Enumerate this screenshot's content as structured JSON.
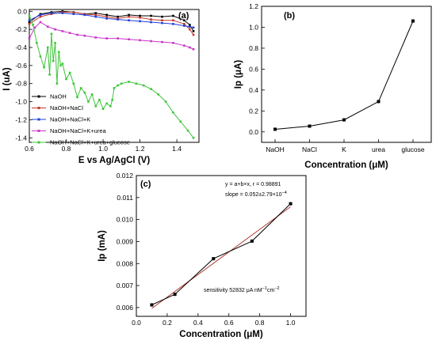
{
  "chart_data": [
    {
      "id": "a",
      "panel_label": "(a)",
      "type": "line",
      "xlabel": "E vs Ag/AgCl (V)",
      "ylabel": "I (uA)",
      "xlim": [
        0.6,
        1.52
      ],
      "ylim": [
        -1.45,
        0.02
      ],
      "xticks": [
        0.6,
        0.8,
        1.0,
        1.2,
        1.4
      ],
      "xtick_labels": [
        "0.6",
        "0.8",
        "1.0",
        "1.2",
        "1.4"
      ],
      "yticks": [
        0.0,
        -0.2,
        -0.4,
        -0.6,
        -0.8,
        -1.0,
        -1.2,
        -1.4
      ],
      "ytick_labels": [
        "0.0",
        "-0.2",
        "-0.4",
        "-0.6",
        "-0.8",
        "-1.0",
        "-1.2",
        "-1.4"
      ],
      "legend_position": "lower-left",
      "series": [
        {
          "name": "NaOH",
          "color": "#000000",
          "x": [
            0.6,
            0.66,
            0.72,
            0.78,
            0.84,
            0.9,
            0.96,
            1.02,
            1.08,
            1.14,
            1.2,
            1.26,
            1.32,
            1.38,
            1.44,
            1.47,
            1.49
          ],
          "y": [
            -0.12,
            -0.03,
            -0.01,
            0.0,
            -0.01,
            -0.03,
            -0.02,
            -0.04,
            -0.06,
            -0.04,
            -0.05,
            -0.05,
            -0.06,
            -0.05,
            -0.1,
            -0.15,
            -0.22
          ]
        },
        {
          "name": "NaOH+NaCl",
          "color": "#c0392b",
          "x": [
            0.6,
            0.66,
            0.72,
            0.78,
            0.84,
            0.9,
            0.96,
            1.02,
            1.08,
            1.14,
            1.2,
            1.26,
            1.32,
            1.38,
            1.44,
            1.47,
            1.49
          ],
          "y": [
            -0.14,
            -0.06,
            -0.03,
            -0.01,
            -0.01,
            -0.03,
            -0.04,
            -0.06,
            -0.08,
            -0.06,
            -0.07,
            -0.09,
            -0.1,
            -0.1,
            -0.14,
            -0.2,
            -0.26
          ]
        },
        {
          "name": "NaOH+NaCl+K",
          "color": "#1f3fd8",
          "x": [
            0.6,
            0.66,
            0.72,
            0.78,
            0.84,
            0.9,
            0.96,
            1.02,
            1.08,
            1.14,
            1.2,
            1.26,
            1.32,
            1.38,
            1.44,
            1.47,
            1.49
          ],
          "y": [
            -0.1,
            -0.04,
            -0.02,
            -0.02,
            -0.03,
            -0.04,
            -0.06,
            -0.08,
            -0.09,
            -0.1,
            -0.11,
            -0.12,
            -0.13,
            -0.14,
            -0.16,
            -0.17,
            -0.18
          ]
        },
        {
          "name": "NaOH+NaCl+K+urea",
          "color": "#c935c9",
          "x": [
            0.6,
            0.63,
            0.66,
            0.7,
            0.74,
            0.78,
            0.82,
            0.86,
            0.9,
            0.96,
            1.02,
            1.08,
            1.14,
            1.2,
            1.26,
            1.32,
            1.38,
            1.44,
            1.47,
            1.49
          ],
          "y": [
            -0.3,
            -0.18,
            -0.12,
            -0.17,
            -0.2,
            -0.22,
            -0.24,
            -0.26,
            -0.27,
            -0.29,
            -0.3,
            -0.3,
            -0.31,
            -0.32,
            -0.33,
            -0.34,
            -0.35,
            -0.38,
            -0.4,
            -0.42
          ]
        },
        {
          "name": "NaOH+NaCl+K+urea+glucose",
          "color": "#3ec63a",
          "x": [
            0.6,
            0.62,
            0.64,
            0.66,
            0.68,
            0.7,
            0.71,
            0.72,
            0.73,
            0.74,
            0.75,
            0.76,
            0.77,
            0.78,
            0.8,
            0.82,
            0.84,
            0.86,
            0.88,
            0.9,
            0.92,
            0.94,
            0.96,
            0.98,
            1.0,
            1.02,
            1.04,
            1.05,
            1.06,
            1.08,
            1.1,
            1.14,
            1.18,
            1.22,
            1.26,
            1.3,
            1.34,
            1.38,
            1.42,
            1.46,
            1.49
          ],
          "y": [
            -0.05,
            -0.15,
            -0.35,
            -0.5,
            -0.62,
            -0.4,
            -0.7,
            -0.25,
            -0.55,
            -0.35,
            -0.8,
            -0.45,
            -0.6,
            -0.58,
            -0.75,
            -0.68,
            -0.8,
            -0.95,
            -0.85,
            -0.9,
            -1.0,
            -0.92,
            -1.05,
            -0.98,
            -1.08,
            -1.02,
            -1.05,
            -0.98,
            -0.85,
            -0.82,
            -0.8,
            -0.78,
            -0.8,
            -0.82,
            -0.86,
            -0.92,
            -1.0,
            -1.12,
            -1.22,
            -1.32,
            -1.4
          ]
        }
      ]
    },
    {
      "id": "b",
      "panel_label": "(b)",
      "type": "line",
      "xlabel": "Concentration (μM)",
      "ylabel": "Ip (μA)",
      "categories": [
        "NaOH",
        "NaCl",
        "K",
        "urea",
        "glucose"
      ],
      "ylim": [
        -0.1,
        1.2
      ],
      "yticks": [
        0.0,
        0.2,
        0.4,
        0.6,
        0.8,
        1.0,
        1.2
      ],
      "ytick_labels": [
        "0.0",
        "0.2",
        "0.4",
        "0.6",
        "0.8",
        "1.0",
        "1.2"
      ],
      "series": [
        {
          "name": "",
          "color": "#000000",
          "values": [
            0.025,
            0.055,
            0.115,
            0.29,
            1.06
          ]
        }
      ]
    },
    {
      "id": "c",
      "panel_label": "(c)",
      "type": "scatter",
      "xlabel": "Concentration (μM)",
      "ylabel": "Ip (mA)",
      "xlim": [
        0.0,
        1.1
      ],
      "ylim": [
        0.0056,
        0.012
      ],
      "xticks": [
        0.0,
        0.2,
        0.4,
        0.6,
        0.8,
        1.0
      ],
      "xtick_labels": [
        "0.0",
        "0.2",
        "0.4",
        "0.6",
        "0.8",
        "1.0"
      ],
      "yticks": [
        0.006,
        0.007,
        0.008,
        0.009,
        0.01,
        0.011,
        0.012
      ],
      "ytick_labels": [
        "0.006",
        "0.007",
        "0.008",
        "0.009",
        "0.010",
        "0.011",
        "0.012"
      ],
      "series": [
        {
          "name": "",
          "color": "#000000",
          "x": [
            0.1,
            0.25,
            0.5,
            0.75,
            1.0
          ],
          "y": [
            0.00612,
            0.0066,
            0.00822,
            0.00902,
            0.01072
          ]
        }
      ],
      "fit": {
        "color": "#b03a2e",
        "x": [
          0.1,
          1.0
        ],
        "y": [
          0.00596,
          0.01058
        ]
      },
      "annotations": {
        "equation": "y = a+b×x, r = 0.98891",
        "slope": "slope = 0.052±2.79×10",
        "slope_exp": "−4",
        "sensitivity_pre": "sensitivity 52832 μA nM",
        "sensitivity_exp1": "−1",
        "sensitivity_mid": "cm",
        "sensitivity_exp2": "−2"
      }
    }
  ]
}
